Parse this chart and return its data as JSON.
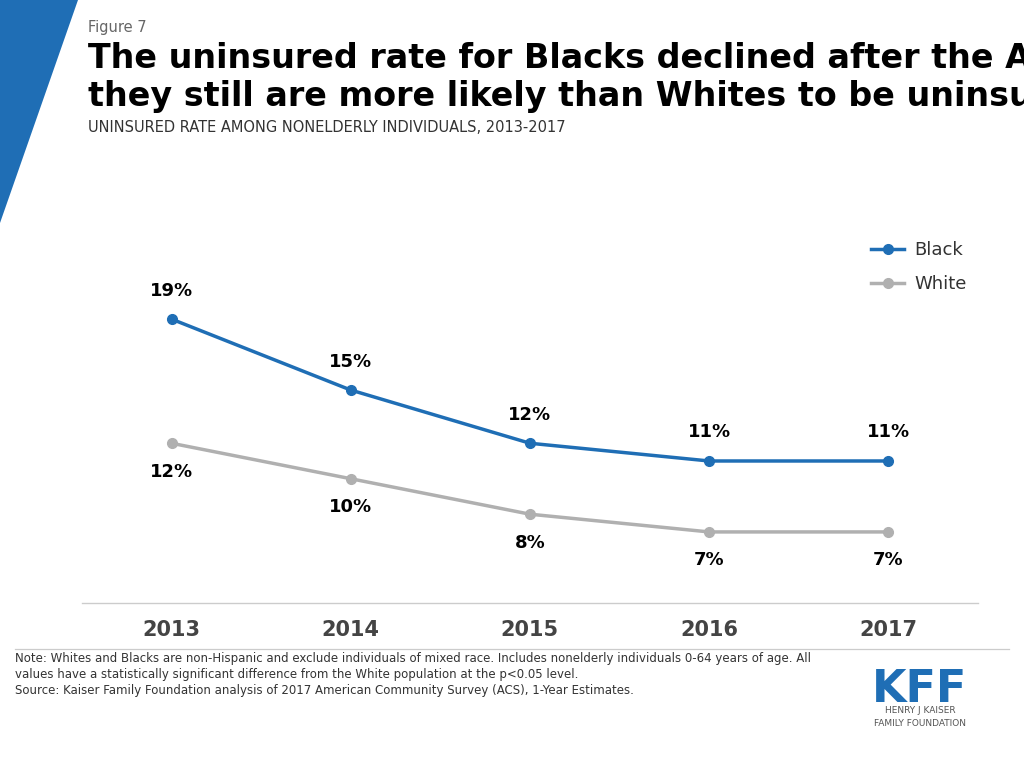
{
  "figure_label": "Figure 7",
  "title_line1": "The uninsured rate for Blacks declined after the ACA, but",
  "title_line2": "they still are more likely than Whites to be uninsured.",
  "subtitle": "UNINSURED RATE AMONG NONELDERLY INDIVIDUALS, 2013-2017",
  "years": [
    2013,
    2014,
    2015,
    2016,
    2017
  ],
  "black_values": [
    19,
    15,
    12,
    11,
    11
  ],
  "white_values": [
    12,
    10,
    8,
    7,
    7
  ],
  "black_labels": [
    "19%",
    "15%",
    "12%",
    "11%",
    "11%"
  ],
  "white_labels": [
    "12%",
    "10%",
    "8%",
    "7%",
    "7%"
  ],
  "black_color": "#1f6eb5",
  "white_color": "#b0b0b0",
  "background_color": "#ffffff",
  "note_line1": "Note: Whites and Blacks are non-Hispanic and exclude individuals of mixed race. Includes nonelderly individuals 0-64 years of age. All",
  "note_line2": "values have a statistically significant difference from the White population at the p<0.05 level.",
  "note_line3": "Source: Kaiser Family Foundation analysis of 2017 American Community Survey (ACS), 1-Year Estimates.",
  "triangle_color": "#1f6eb5",
  "ylim_min": 3,
  "ylim_max": 24,
  "fig_label_color": "#666666",
  "kff_color": "#1f6eb5",
  "kff_sub_color": "#555555"
}
